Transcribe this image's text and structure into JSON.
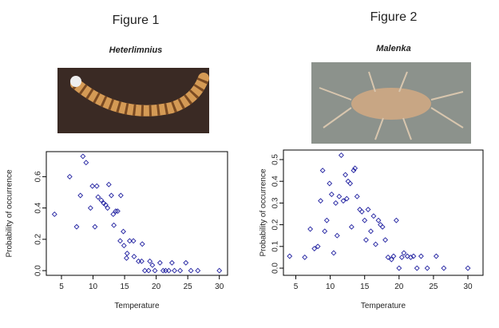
{
  "chart_data": [
    {
      "type": "scatter",
      "figure": "Figure 1",
      "title": "Heterlimnius",
      "x_label": "Temperature",
      "y_label": "Probability of occurrence",
      "color": "#2020a0",
      "xlim": [
        2.6,
        31.3
      ],
      "ylim": [
        -0.03,
        0.76
      ],
      "xticks": [
        5,
        10,
        15,
        20,
        25,
        30
      ],
      "yticks": [
        {
          "value": 0,
          "label": "0.0"
        },
        0.2,
        0.4,
        0.6
      ],
      "x": [
        3.9,
        6.3,
        7.4,
        8.0,
        8.4,
        8.9,
        9.6,
        9.9,
        10.3,
        10.6,
        10.8,
        11.3,
        11.7,
        12.0,
        12.3,
        12.5,
        12.9,
        13.2,
        13.3,
        13.6,
        13.9,
        14.4,
        14.3,
        14.8,
        14.9,
        15.3,
        15.4,
        15.8,
        16.4,
        16.5,
        17.2,
        17.7,
        17.8,
        18.2,
        18.8,
        19.0,
        19.4,
        19.8,
        20.6,
        21.1,
        21.5,
        22.0,
        22.5,
        22.9,
        23.8,
        24.7,
        25.5,
        26.6,
        30.0
      ],
      "values": [
        0.36,
        0.6,
        0.28,
        0.48,
        0.73,
        0.69,
        0.4,
        0.54,
        0.28,
        0.54,
        0.47,
        0.45,
        0.43,
        0.42,
        0.4,
        0.55,
        0.48,
        0.36,
        0.29,
        0.38,
        0.38,
        0.48,
        0.19,
        0.25,
        0.16,
        0.08,
        0.11,
        0.19,
        0.19,
        0.09,
        0.06,
        0.06,
        0.17,
        0,
        0,
        0.06,
        0.035,
        0,
        0.05,
        0,
        0,
        0,
        0.05,
        0,
        0,
        0.05,
        0,
        0,
        0
      ]
    },
    {
      "type": "scatter",
      "figure": "Figure 2",
      "title": "Malenka",
      "x_label": "Temperature",
      "y_label": "Probability of occurrence",
      "color": "#2020a0",
      "xlim": [
        3.2,
        32.2
      ],
      "ylim": [
        -0.033,
        0.544
      ],
      "xticks": [
        5,
        10,
        15,
        20,
        25,
        30
      ],
      "yticks": [
        {
          "value": 0,
          "label": "0.0"
        },
        0.1,
        0.2,
        0.3,
        0.4,
        0.5
      ],
      "x": [
        4.1,
        6.3,
        7.1,
        7.7,
        8.2,
        8.6,
        8.9,
        9.2,
        9.5,
        9.9,
        10.2,
        10.5,
        10.8,
        11.0,
        11.3,
        11.6,
        11.9,
        12.2,
        12.4,
        12.6,
        12.9,
        13.1,
        13.4,
        13.6,
        13.9,
        14.3,
        14.6,
        15.0,
        15.2,
        15.5,
        15.9,
        16.3,
        16.6,
        17.0,
        17.3,
        17.6,
        18.0,
        18.4,
        18.9,
        19.2,
        19.6,
        20.0,
        20.4,
        20.7,
        21.2,
        21.7,
        22.1,
        22.6,
        23.2,
        24.1,
        25.4,
        26.5,
        30.0
      ],
      "values": [
        0.055,
        0.05,
        0.18,
        0.09,
        0.1,
        0.31,
        0.45,
        0.17,
        0.22,
        0.39,
        0.34,
        0.07,
        0.3,
        0.15,
        0.33,
        0.52,
        0.31,
        0.43,
        0.32,
        0.4,
        0.39,
        0.19,
        0.45,
        0.46,
        0.33,
        0.27,
        0.26,
        0.22,
        0.13,
        0.27,
        0.17,
        0.24,
        0.11,
        0.22,
        0.2,
        0.19,
        0.13,
        0.05,
        0.04,
        0.055,
        0.22,
        0,
        0.05,
        0.07,
        0.055,
        0.05,
        0.055,
        0,
        0.055,
        0,
        0.055,
        0,
        0
      ]
    }
  ]
}
